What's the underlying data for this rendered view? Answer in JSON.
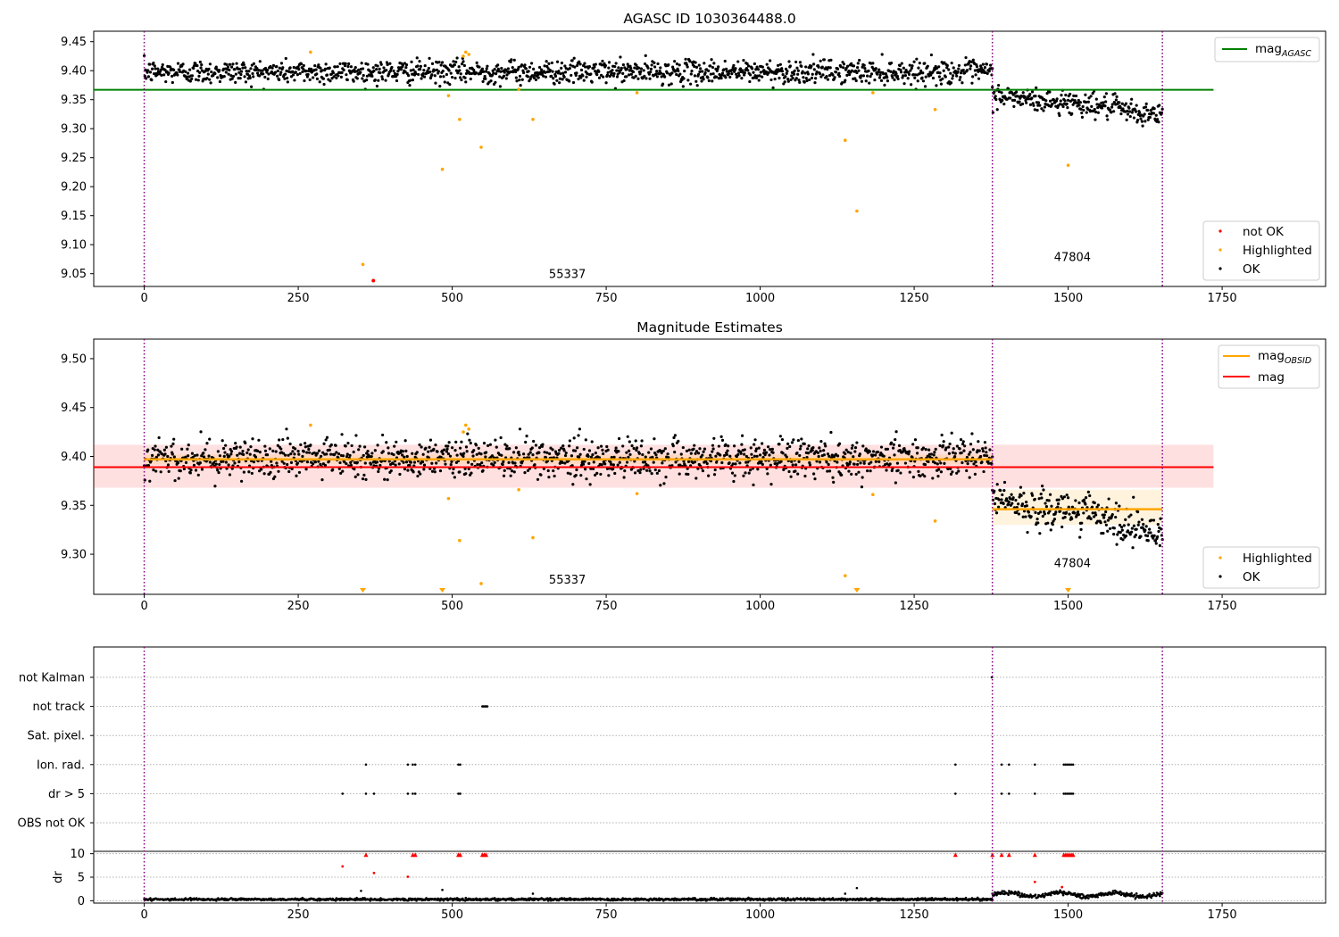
{
  "chart_data": [
    {
      "type": "scatter",
      "title": "AGASC ID 1030364488.0",
      "xlim": [
        -82,
        1918
      ],
      "ylim": [
        9.028,
        9.468
      ],
      "x_ticks": [
        0,
        250,
        500,
        750,
        1000,
        1250,
        1500,
        1750
      ],
      "y_ticks": [
        9.05,
        9.1,
        9.15,
        9.2,
        9.25,
        9.3,
        9.35,
        9.4,
        9.45
      ],
      "obs_boundaries": [
        0,
        1377,
        1653
      ],
      "obs_labels": [
        {
          "text": "55337",
          "x": 687,
          "y": 9.043
        },
        {
          "text": "47804",
          "x": 1507,
          "y": 9.072
        }
      ],
      "mag_agasc": {
        "y": 9.367,
        "x0": -82,
        "x1": 1736
      },
      "ok_segments": [
        {
          "x0": 0,
          "x1": 1377,
          "mean": 9.398,
          "noise": 0.01
        },
        {
          "x0": 1377,
          "x1": 1653,
          "mean_start": 9.358,
          "mean_end": 9.322,
          "noise": 0.01
        }
      ],
      "highlighted_points": [
        [
          270,
          9.432
        ],
        [
          355,
          9.066
        ],
        [
          484,
          9.23
        ],
        [
          494,
          9.357
        ],
        [
          512,
          9.316
        ],
        [
          518,
          9.425
        ],
        [
          522,
          9.432
        ],
        [
          527,
          9.428
        ],
        [
          547,
          9.268
        ],
        [
          608,
          9.368
        ],
        [
          631,
          9.316
        ],
        [
          800,
          9.362
        ],
        [
          1138,
          9.28
        ],
        [
          1157,
          9.158
        ],
        [
          1183,
          9.362
        ],
        [
          1284,
          9.333
        ],
        [
          1500,
          9.237
        ]
      ],
      "not_ok_points": [
        [
          372,
          9.038
        ]
      ],
      "legend": {
        "position": "top-right",
        "lines": [
          {
            "label": "mag",
            "subscript": "AGASC",
            "color": "#008000"
          }
        ]
      },
      "legend2": {
        "position": "lower-right",
        "items": [
          {
            "label": "not OK",
            "color": "#ff0000"
          },
          {
            "label": "Highlighted",
            "color": "#ffa500"
          },
          {
            "label": "OK",
            "color": "#000000"
          }
        ]
      }
    },
    {
      "type": "scatter",
      "title": "Magnitude Estimates",
      "xlim": [
        -82,
        1918
      ],
      "ylim": [
        9.259,
        9.52
      ],
      "x_ticks": [
        0,
        250,
        500,
        750,
        1000,
        1250,
        1500,
        1750
      ],
      "y_ticks": [
        9.3,
        9.35,
        9.4,
        9.45,
        9.5
      ],
      "obs_boundaries": [
        0,
        1377,
        1653
      ],
      "obs_labels": [
        {
          "text": "55337",
          "x": 687,
          "y": 9.27
        },
        {
          "text": "47804",
          "x": 1507,
          "y": 9.287
        }
      ],
      "mag": {
        "y": 9.389,
        "band": [
          9.368,
          9.412
        ],
        "x0": -82,
        "x1": 1736,
        "color": "#ff0000"
      },
      "mag_obsid": [
        {
          "x0": 0,
          "x1": 1377,
          "y": 9.397,
          "band": [
            9.392,
            9.402
          ]
        },
        {
          "x0": 1377,
          "x1": 1653,
          "y": 9.346,
          "band": [
            9.33,
            9.366
          ]
        }
      ],
      "highlighted_points": [
        [
          270,
          9.432
        ],
        [
          494,
          9.357
        ],
        [
          512,
          9.314
        ],
        [
          518,
          9.425
        ],
        [
          522,
          9.432
        ],
        [
          527,
          9.428
        ],
        [
          547,
          9.27
        ],
        [
          608,
          9.366
        ],
        [
          631,
          9.317
        ],
        [
          800,
          9.362
        ],
        [
          1138,
          9.278
        ],
        [
          1183,
          9.361
        ],
        [
          1284,
          9.334
        ]
      ],
      "clipped_points_x": [
        355,
        484,
        1157,
        1500
      ],
      "legend": {
        "position": "top-right",
        "lines": [
          {
            "label": "mag",
            "subscript": "OBSID",
            "color": "#ffa500"
          },
          {
            "label": "mag",
            "subscript": "",
            "color": "#ff0000"
          }
        ]
      },
      "legend2": {
        "position": "lower-right",
        "items": [
          {
            "label": "Highlighted",
            "color": "#ffa500"
          },
          {
            "label": "OK",
            "color": "#000000"
          }
        ]
      }
    },
    {
      "type": "scatter",
      "title": "",
      "xlim": [
        -82,
        1918
      ],
      "x_ticks": [
        0,
        250,
        500,
        750,
        1000,
        1250,
        1500,
        1750
      ],
      "obs_boundaries": [
        0,
        1377,
        1653
      ],
      "flag_rows": [
        "not Kalman",
        "not track",
        "Sat. pixel.",
        "Ion. rad.",
        "dr > 5",
        "OBS not OK"
      ],
      "flag_points": {
        "not Kalman": [
          1376
        ],
        "not track": [
          549,
          551,
          553,
          555,
          557
        ],
        "Sat. pixel.": [],
        "Ion. rad.": [
          360,
          428,
          436,
          440,
          510,
          513,
          1317,
          1392,
          1404,
          1446,
          1493,
          1496,
          1499,
          1502,
          1505,
          1508
        ],
        "dr > 5": [
          322,
          360,
          373,
          428,
          436,
          440,
          510,
          513,
          1317,
          1392,
          1404,
          1446,
          1493,
          1496,
          1499,
          1502,
          1505,
          1508
        ],
        "OBS not OK": []
      },
      "dr_ylabel": "dr",
      "dr_ylim": [
        -0.5,
        10.5
      ],
      "dr_ticks": [
        0,
        5,
        10
      ],
      "dr_red_points": [
        [
          322,
          7.3
        ],
        [
          360,
          9.7
        ],
        [
          373,
          5.9
        ],
        [
          428,
          5.1
        ],
        [
          436,
          9.7
        ],
        [
          440,
          9.7
        ],
        [
          510,
          9.7
        ],
        [
          513,
          9.7
        ],
        [
          549,
          9.7
        ],
        [
          552,
          9.7
        ],
        [
          555,
          9.7
        ],
        [
          1317,
          9.7
        ],
        [
          1377,
          9.7
        ],
        [
          1392,
          9.7
        ],
        [
          1404,
          9.7
        ],
        [
          1446,
          9.7
        ],
        [
          1446,
          4.0
        ],
        [
          1493,
          9.7
        ],
        [
          1496,
          9.7
        ],
        [
          1499,
          9.7
        ],
        [
          1502,
          9.7
        ],
        [
          1505,
          9.7
        ],
        [
          1508,
          9.7
        ],
        [
          1490,
          2.9
        ]
      ],
      "dr_segments": [
        {
          "x0": 0,
          "x1": 1377,
          "mean": 0.3,
          "noise": 0.12
        },
        {
          "x0": 1377,
          "x1": 1653,
          "mean": 1.3,
          "noise": 0.35
        }
      ],
      "dr_extra_black": [
        [
          352,
          2.1
        ],
        [
          484,
          2.3
        ],
        [
          1138,
          1.5
        ],
        [
          1157,
          2.7
        ],
        [
          631,
          1.5
        ]
      ]
    }
  ]
}
